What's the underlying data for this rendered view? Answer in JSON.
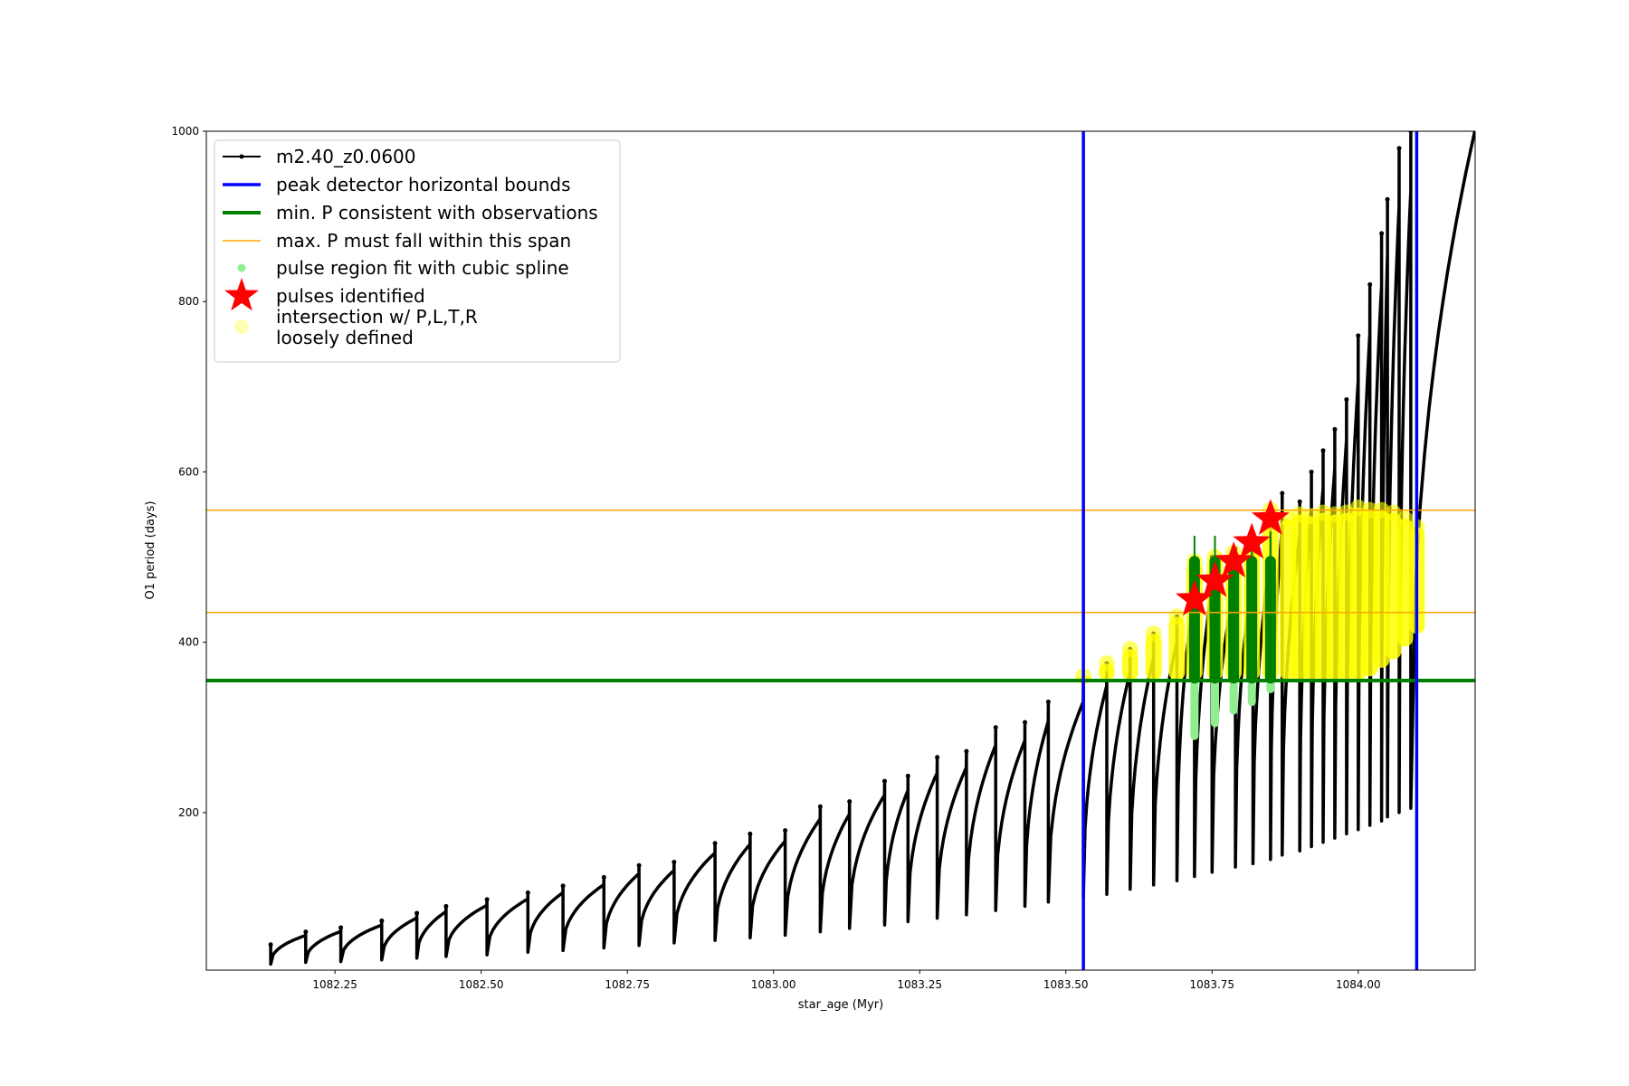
{
  "chart_data": {
    "type": "line",
    "title": "",
    "xlabel": "star_age (Myr)",
    "ylabel": "O1 period (days)",
    "xlim": [
      1082.03,
      1084.2
    ],
    "ylim": [
      15,
      1000
    ],
    "xticks": [
      "1082.25",
      "1082.50",
      "1082.75",
      "1083.00",
      "1083.25",
      "1083.50",
      "1083.75",
      "1084.00"
    ],
    "yticks": [
      "200",
      "400",
      "600",
      "800",
      "1000"
    ],
    "grid": false,
    "legend_position": "upper-left",
    "legend": [
      {
        "label": "m2.40_z0.0600",
        "marker": "black-line-dots"
      },
      {
        "label": "peak detector horizontal bounds",
        "marker": "blue-line"
      },
      {
        "label": "min. P consistent with observations",
        "marker": "green-line"
      },
      {
        "label": "max. P must fall within this span",
        "marker": "orange-line"
      },
      {
        "label": "pulse region fit with cubic spline",
        "marker": "lightgreen-dot"
      },
      {
        "label": "pulses identified",
        "marker": "red-star"
      },
      {
        "label": "intersection w/ P,L,T,R\nloosely defined",
        "marker": "yellow-circle"
      }
    ],
    "colors": {
      "track": "#000000",
      "bounds": "#0000ff",
      "min_p": "#008000",
      "max_p": "#ffa500",
      "spline": "#90ee90",
      "pulses": "#ff0000",
      "intersection": "#ffff00"
    },
    "series": [
      {
        "name": "m2.40_z0.0600",
        "kind": "thermal-pulse track",
        "pulses": [
          {
            "age": 1082.14,
            "low": 22,
            "high": 45
          },
          {
            "age": 1082.2,
            "low": 24,
            "high": 60
          },
          {
            "age": 1082.26,
            "low": 25,
            "high": 65
          },
          {
            "age": 1082.33,
            "low": 27,
            "high": 73
          },
          {
            "age": 1082.39,
            "low": 29,
            "high": 82
          },
          {
            "age": 1082.44,
            "low": 31,
            "high": 90
          },
          {
            "age": 1082.51,
            "low": 33,
            "high": 98
          },
          {
            "age": 1082.58,
            "low": 36,
            "high": 106
          },
          {
            "age": 1082.64,
            "low": 38,
            "high": 114
          },
          {
            "age": 1082.71,
            "low": 41,
            "high": 124
          },
          {
            "age": 1082.77,
            "low": 44,
            "high": 138
          },
          {
            "age": 1082.83,
            "low": 47,
            "high": 142
          },
          {
            "age": 1082.9,
            "low": 50,
            "high": 164
          },
          {
            "age": 1082.96,
            "low": 53,
            "high": 175
          },
          {
            "age": 1083.02,
            "low": 56,
            "high": 179
          },
          {
            "age": 1083.08,
            "low": 60,
            "high": 207
          },
          {
            "age": 1083.13,
            "low": 64,
            "high": 213
          },
          {
            "age": 1083.19,
            "low": 68,
            "high": 237
          },
          {
            "age": 1083.23,
            "low": 72,
            "high": 243
          },
          {
            "age": 1083.28,
            "low": 76,
            "high": 265
          },
          {
            "age": 1083.33,
            "low": 80,
            "high": 272
          },
          {
            "age": 1083.38,
            "low": 85,
            "high": 300
          },
          {
            "age": 1083.43,
            "low": 90,
            "high": 306
          },
          {
            "age": 1083.47,
            "low": 95,
            "high": 330
          },
          {
            "age": 1083.53,
            "low": 100,
            "high": 355
          },
          {
            "age": 1083.57,
            "low": 104,
            "high": 375
          },
          {
            "age": 1083.61,
            "low": 110,
            "high": 392
          },
          {
            "age": 1083.65,
            "low": 115,
            "high": 410
          },
          {
            "age": 1083.69,
            "low": 120,
            "high": 430
          },
          {
            "age": 1083.72,
            "low": 125,
            "high": 495
          },
          {
            "age": 1083.75,
            "low": 130,
            "high": 500
          },
          {
            "age": 1083.79,
            "low": 136,
            "high": 510
          },
          {
            "age": 1083.82,
            "low": 140,
            "high": 520
          },
          {
            "age": 1083.85,
            "low": 145,
            "high": 540
          },
          {
            "age": 1083.87,
            "low": 150,
            "high": 575
          },
          {
            "age": 1083.9,
            "low": 155,
            "high": 565
          },
          {
            "age": 1083.92,
            "low": 160,
            "high": 600
          },
          {
            "age": 1083.94,
            "low": 165,
            "high": 625
          },
          {
            "age": 1083.96,
            "low": 170,
            "high": 650
          },
          {
            "age": 1083.98,
            "low": 175,
            "high": 685
          },
          {
            "age": 1084.0,
            "low": 180,
            "high": 760
          },
          {
            "age": 1084.02,
            "low": 185,
            "high": 820
          },
          {
            "age": 1084.04,
            "low": 190,
            "high": 880
          },
          {
            "age": 1084.05,
            "low": 195,
            "high": 920
          },
          {
            "age": 1084.07,
            "low": 200,
            "high": 980
          },
          {
            "age": 1084.09,
            "low": 205,
            "high": 1000
          }
        ]
      },
      {
        "name": "peak detector horizontal bounds",
        "kind": "vertical-lines",
        "x": [
          1083.53,
          1084.1
        ]
      },
      {
        "name": "min. P consistent with observations",
        "kind": "horizontal-line",
        "y": 355
      },
      {
        "name": "max. P must fall within this span",
        "kind": "horizontal-lines",
        "y": [
          435,
          555
        ]
      },
      {
        "name": "pulse region fit with cubic spline",
        "kind": "vertical-bars",
        "bars": [
          {
            "x": 1083.72,
            "low": 290,
            "high": 525
          },
          {
            "x": 1083.755,
            "low": 305,
            "high": 525
          },
          {
            "x": 1083.787,
            "low": 320,
            "high": 510
          },
          {
            "x": 1083.818,
            "low": 330,
            "high": 520
          },
          {
            "x": 1083.85,
            "low": 345,
            "high": 530
          }
        ]
      },
      {
        "name": "pulses identified",
        "kind": "stars",
        "points": [
          {
            "x": 1083.72,
            "y": 450
          },
          {
            "x": 1083.755,
            "y": 472
          },
          {
            "x": 1083.787,
            "y": 495
          },
          {
            "x": 1083.818,
            "y": 517
          },
          {
            "x": 1083.85,
            "y": 545
          }
        ]
      },
      {
        "name": "intersection w/ P,L,T,R\nloosely defined",
        "kind": "circle-columns",
        "columns": [
          {
            "x": 1083.53,
            "low": 355,
            "high": 360
          },
          {
            "x": 1083.57,
            "low": 355,
            "high": 375
          },
          {
            "x": 1083.61,
            "low": 355,
            "high": 392
          },
          {
            "x": 1083.65,
            "low": 355,
            "high": 410
          },
          {
            "x": 1083.69,
            "low": 355,
            "high": 430
          },
          {
            "x": 1083.72,
            "low": 355,
            "high": 495
          },
          {
            "x": 1083.755,
            "low": 355,
            "high": 500
          },
          {
            "x": 1083.787,
            "low": 355,
            "high": 505
          },
          {
            "x": 1083.818,
            "low": 355,
            "high": 515
          },
          {
            "x": 1083.85,
            "low": 355,
            "high": 555
          },
          {
            "x": 1083.88,
            "low": 355,
            "high": 545
          },
          {
            "x": 1083.9,
            "low": 355,
            "high": 550
          },
          {
            "x": 1083.92,
            "low": 355,
            "high": 548
          },
          {
            "x": 1083.94,
            "low": 355,
            "high": 552
          },
          {
            "x": 1083.96,
            "low": 355,
            "high": 550
          },
          {
            "x": 1083.98,
            "low": 355,
            "high": 552
          },
          {
            "x": 1084.0,
            "low": 355,
            "high": 558
          },
          {
            "x": 1084.02,
            "low": 360,
            "high": 555
          },
          {
            "x": 1084.04,
            "low": 370,
            "high": 555
          },
          {
            "x": 1084.06,
            "low": 380,
            "high": 552
          },
          {
            "x": 1084.08,
            "low": 395,
            "high": 545
          },
          {
            "x": 1084.1,
            "low": 410,
            "high": 535
          }
        ]
      }
    ]
  }
}
